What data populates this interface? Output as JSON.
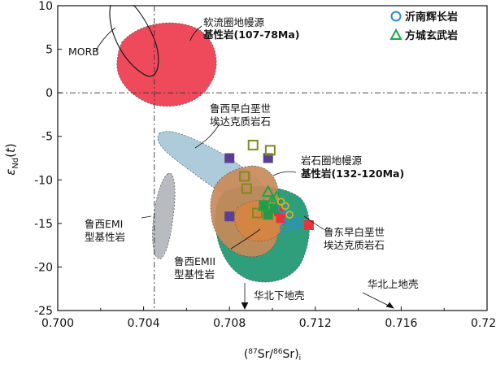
{
  "chart_data": {
    "type": "scatter",
    "title": "",
    "xlabel": "(87Sr/86Sr)i",
    "ylabel": "εNd(t)",
    "xlim": [
      0.7,
      0.72
    ],
    "ylim": [
      -25,
      10
    ],
    "x_ticks": [
      "0.700",
      "0.704",
      "0.708",
      "0.712",
      "0.716",
      "0.720"
    ],
    "y_ticks": [
      "10",
      "5",
      "0",
      "-5",
      "-10",
      "-15",
      "-20",
      "-25"
    ],
    "reference_lines": {
      "x": 0.7045,
      "y": 0
    },
    "legend": {
      "position": "top-right",
      "entries": [
        {
          "label": "沂南辉长岩",
          "marker": "open-circle",
          "color": "#2b8fc9"
        },
        {
          "label": "方城玄武岩",
          "marker": "open-triangle",
          "color": "#19a64a"
        }
      ]
    },
    "series": [
      {
        "marker": "filled-square",
        "color": "#5b3f95",
        "points": [
          [
            0.708,
            -7.5
          ],
          [
            0.7098,
            -7.5
          ],
          [
            0.708,
            -14.2
          ]
        ]
      },
      {
        "marker": "open-square",
        "color": "#7f8a1e",
        "points": [
          [
            0.7091,
            -6.0
          ],
          [
            0.7099,
            -6.6
          ],
          [
            0.7087,
            -9.6
          ],
          [
            0.7088,
            -11.0
          ],
          [
            0.7093,
            -13.8
          ]
        ]
      },
      {
        "marker": "filled-square",
        "color": "#e8333b",
        "points": [
          [
            0.7103,
            -13.6
          ],
          [
            0.7104,
            -14.4
          ],
          [
            0.7117,
            -15.2
          ]
        ]
      },
      {
        "marker": "filled-square",
        "color": "#27994a",
        "points": [
          [
            0.7096,
            -12.9
          ],
          [
            0.7098,
            -14.0
          ],
          [
            0.7101,
            -13.3
          ]
        ]
      },
      {
        "name": "沂南辉长岩",
        "marker": "open-circle",
        "color": "#2b8fc9",
        "points": [
          [
            0.7105,
            -13.3
          ],
          [
            0.7108,
            -14.6
          ],
          [
            0.711,
            -15.2
          ],
          [
            0.7106,
            -15.5
          ],
          [
            0.7112,
            -14.9
          ]
        ]
      },
      {
        "name": "方城玄武岩",
        "marker": "open-triangle",
        "color": "#19a64a",
        "points": [
          [
            0.7098,
            -11.4
          ],
          [
            0.71,
            -12.4
          ],
          [
            0.7096,
            -13.0
          ],
          [
            0.7102,
            -12.0
          ]
        ]
      },
      {
        "marker": "open-circle-small",
        "color": "#d4b21c",
        "points": [
          [
            0.7104,
            -12.5
          ],
          [
            0.7106,
            -13.0
          ],
          [
            0.7108,
            -14.0
          ]
        ]
      }
    ],
    "fields": [
      {
        "name": "mantle-source-107-78",
        "label_lines": [
          "软流圈地幔源",
          "基性岩(107-78Ma)"
        ],
        "fill": "#ee4a5c"
      },
      {
        "name": "luxi-early-paleoproterozoic-adakitic",
        "label_lines": [
          "鲁西早白垩世",
          "埃达克质岩石"
        ],
        "fill": "#a9c9da"
      },
      {
        "name": "lithospheric-mantle-132-120",
        "label_lines": [
          "岩石圈地幔源",
          "基性岩(132-120Ma)"
        ],
        "fill": "#c98a5a"
      },
      {
        "name": "ludong-early-cretaceous-adakitic",
        "label_lines": [
          "鲁东早白垩世",
          "埃达克质岩石"
        ],
        "fill": "#2f9e7a"
      },
      {
        "name": "luxi-emi-basic",
        "label_lines": [
          "鲁西EMI",
          "型基性岩"
        ],
        "fill": "#b8bbbf"
      },
      {
        "name": "luxi-emii-basic",
        "label_lines": [
          "鲁西EMII",
          "型基性岩"
        ],
        "fill": "#d9833f"
      }
    ],
    "annotations": [
      "MORB",
      "华北下地壳",
      "华北上地壳"
    ]
  }
}
